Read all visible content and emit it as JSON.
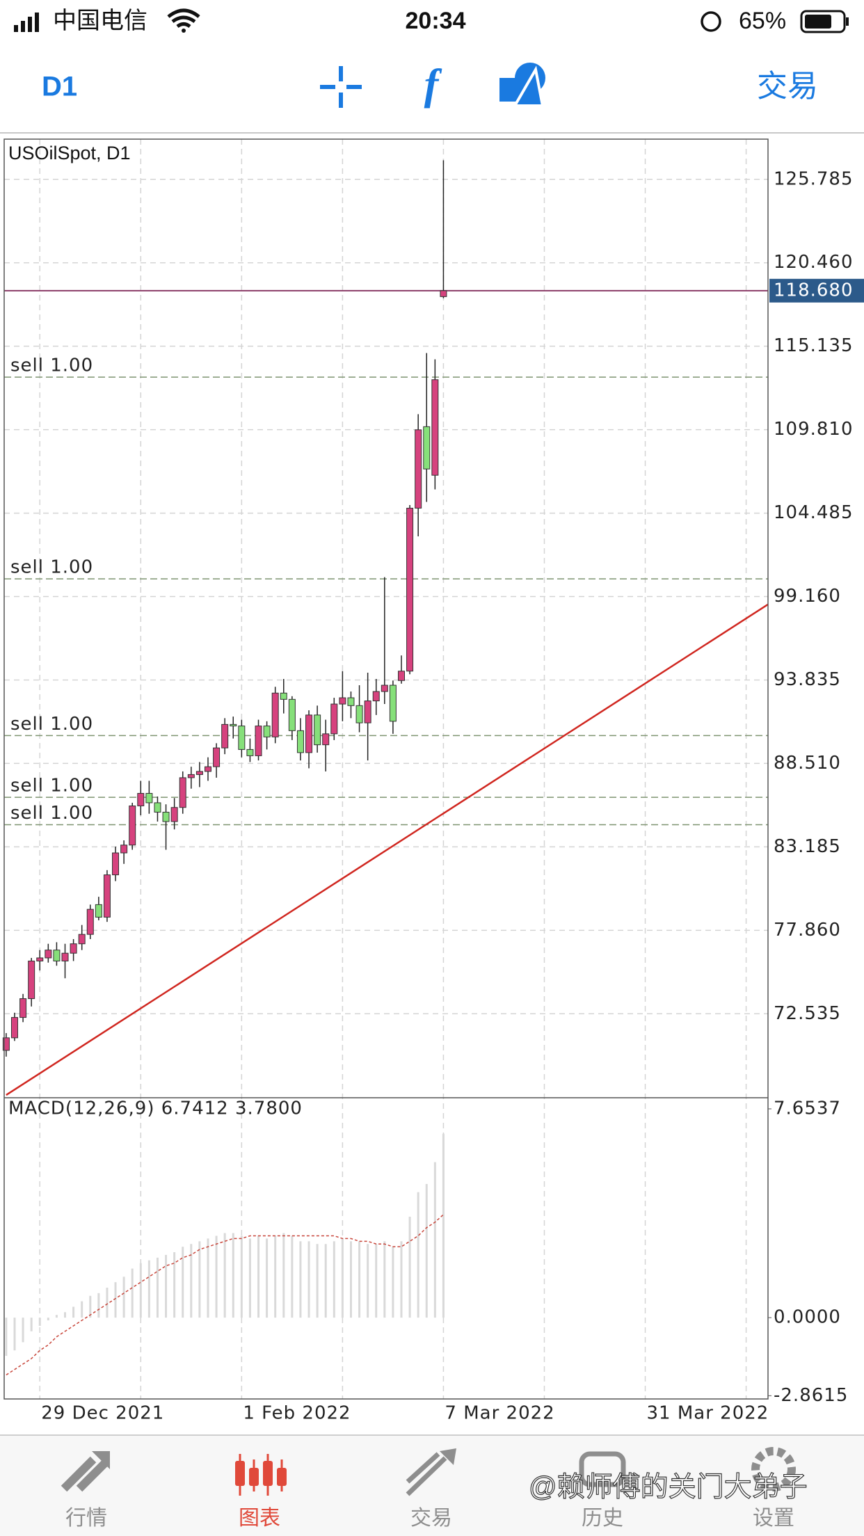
{
  "status_bar": {
    "carrier": "中国电信",
    "time": "20:34",
    "battery": "65%"
  },
  "toolbar": {
    "timeframe": "D1",
    "trade": "交易"
  },
  "chart_data": [
    {
      "type": "candlestick",
      "title": "USOilSpot, D1",
      "open": [
        70.2,
        71.0,
        72.3,
        73.5,
        75.9,
        76.1,
        76.6,
        75.9,
        76.4,
        77.0,
        77.6,
        79.5,
        78.7,
        81.4,
        82.8,
        83.3,
        85.8,
        86.6,
        86.0,
        85.4,
        84.8,
        85.7,
        87.6,
        87.8,
        88.0,
        88.3,
        89.5,
        91.0,
        90.9,
        89.4,
        89.0,
        90.9,
        90.2,
        93.0,
        92.6,
        90.6,
        89.2,
        91.6,
        89.7,
        90.4,
        92.3,
        92.7,
        92.2,
        91.1,
        92.5,
        93.1,
        93.5,
        93.8,
        94.4,
        104.8,
        110.0,
        106.9,
        118.3
      ],
      "high": [
        71.3,
        72.6,
        73.8,
        76.1,
        76.6,
        77.0,
        77.1,
        77.0,
        77.3,
        78.2,
        79.5,
        80.0,
        81.7,
        83.2,
        83.6,
        86.0,
        87.4,
        87.4,
        86.4,
        85.9,
        86.3,
        88.0,
        88.3,
        88.6,
        88.9,
        89.8,
        91.4,
        91.5,
        91.3,
        90.1,
        91.3,
        91.2,
        93.4,
        93.9,
        92.8,
        91.4,
        91.9,
        92.2,
        91.3,
        92.7,
        94.4,
        93.1,
        93.5,
        94.3,
        93.9,
        100.4,
        93.8,
        95.4,
        105.0,
        110.8,
        114.7,
        114.3,
        127.0
      ],
      "low": [
        69.8,
        70.8,
        72.0,
        73.0,
        75.3,
        75.8,
        75.6,
        74.8,
        75.9,
        76.6,
        77.3,
        78.5,
        78.4,
        81.0,
        82.1,
        83.0,
        85.2,
        85.3,
        84.8,
        83.0,
        84.3,
        85.3,
        86.9,
        87.0,
        87.4,
        87.6,
        89.1,
        90.1,
        88.9,
        88.6,
        88.7,
        89.4,
        89.8,
        91.7,
        90.0,
        88.7,
        88.2,
        89.2,
        88.0,
        90.0,
        91.2,
        91.4,
        90.5,
        88.7,
        91.6,
        92.3,
        90.4,
        93.6,
        94.2,
        103.0,
        105.2,
        106.0,
        118.2
      ],
      "close": [
        71.0,
        72.3,
        73.5,
        75.9,
        76.1,
        76.6,
        75.9,
        76.4,
        77.0,
        77.6,
        79.2,
        78.7,
        81.4,
        82.8,
        83.3,
        85.8,
        86.6,
        86.0,
        85.4,
        84.8,
        85.7,
        87.6,
        87.8,
        88.0,
        88.3,
        89.5,
        91.0,
        90.9,
        89.4,
        89.0,
        90.9,
        90.2,
        93.0,
        92.6,
        90.6,
        89.2,
        91.6,
        89.7,
        90.4,
        92.3,
        92.7,
        92.2,
        91.1,
        92.5,
        93.1,
        93.5,
        91.2,
        94.4,
        104.8,
        109.8,
        107.3,
        113.0,
        118.68
      ],
      "up_color": "#d6427e",
      "down_color": "#86e07a",
      "xlim": [
        -0.24,
        90.6
      ],
      "ylim": [
        67.22,
        128.35
      ],
      "yticks": [
        125.785,
        {
          "value": 120.46,
          "label": "120.460"
        },
        115.135,
        {
          "value": 109.81,
          "label": "109.810"
        },
        104.485,
        {
          "value": 99.16,
          "label": "99.160"
        },
        93.835,
        {
          "value": 88.51,
          "label": "88.510"
        },
        83.185,
        {
          "value": 77.86,
          "label": "77.860"
        },
        72.535
      ],
      "xticks": [
        {
          "value": 4,
          "label": "29 Dec 2021"
        },
        {
          "value": 28,
          "label": "1 Feb 2022"
        },
        {
          "value": 52,
          "label": "7 Mar 2022"
        },
        {
          "value": 76,
          "label": "31 Mar 2022"
        }
      ],
      "x_grid": [
        16,
        40,
        64,
        88
      ],
      "grid": true,
      "current_price": {
        "value": 118.68,
        "label": "118.680"
      },
      "orders": [
        {
          "label": "sell 1.00",
          "price": 113.16
        },
        {
          "label": "sell 1.00",
          "price": 100.29
        },
        {
          "label": "sell 1.00",
          "price": 90.29
        },
        {
          "label": "sell 1.00",
          "price": 86.35
        },
        {
          "label": "sell 1.00",
          "price": 84.6
        }
      ],
      "trendline": {
        "x": [
          0,
          90.6
        ],
        "y": [
          67.35,
          98.66
        ],
        "color": "#d0261f"
      }
    },
    {
      "type": "macd",
      "title": "MACD(12,26,9) 6.7412 3.7800",
      "histogram": [
        -1.4,
        -1.2,
        -0.9,
        -0.5,
        -0.3,
        -0.1,
        0.1,
        0.2,
        0.4,
        0.6,
        0.8,
        0.9,
        1.1,
        1.3,
        1.5,
        1.8,
        2.0,
        2.1,
        2.2,
        2.3,
        2.4,
        2.6,
        2.7,
        2.8,
        2.9,
        3.0,
        3.1,
        3.1,
        3.0,
        2.9,
        3.0,
        2.9,
        3.0,
        3.1,
        3.0,
        2.8,
        2.8,
        2.7,
        2.7,
        2.8,
        2.9,
        2.8,
        2.8,
        2.7,
        2.7,
        2.8,
        2.6,
        2.8,
        3.7,
        4.6,
        4.9,
        5.7,
        6.7412
      ],
      "signal": [
        -2.1,
        -1.9,
        -1.7,
        -1.5,
        -1.2,
        -1.0,
        -0.7,
        -0.5,
        -0.3,
        -0.1,
        0.1,
        0.3,
        0.5,
        0.7,
        0.9,
        1.1,
        1.3,
        1.5,
        1.7,
        1.9,
        2.0,
        2.2,
        2.3,
        2.5,
        2.6,
        2.7,
        2.8,
        2.9,
        2.9,
        3.0,
        3.0,
        3.0,
        3.0,
        3.0,
        3.0,
        3.0,
        3.0,
        3.0,
        3.0,
        3.0,
        2.9,
        2.9,
        2.8,
        2.8,
        2.7,
        2.7,
        2.6,
        2.6,
        2.8,
        3.0,
        3.3,
        3.5,
        3.78
      ],
      "histogram_color": "#d9d9d9",
      "signal_color": "#c8453a",
      "xlim": [
        -0.24,
        90.6
      ],
      "ylim": [
        -2.98,
        8.01
      ],
      "yticks": [
        7.6537,
        {
          "value": 0,
          "label": "0.0000"
        },
        -2.8615
      ]
    }
  ],
  "tab_bar": {
    "tabs": [
      "行情",
      "图表",
      "交易",
      "历史",
      "设置"
    ],
    "active": 1
  },
  "watermark": "@赖师傅的关门大弟子"
}
